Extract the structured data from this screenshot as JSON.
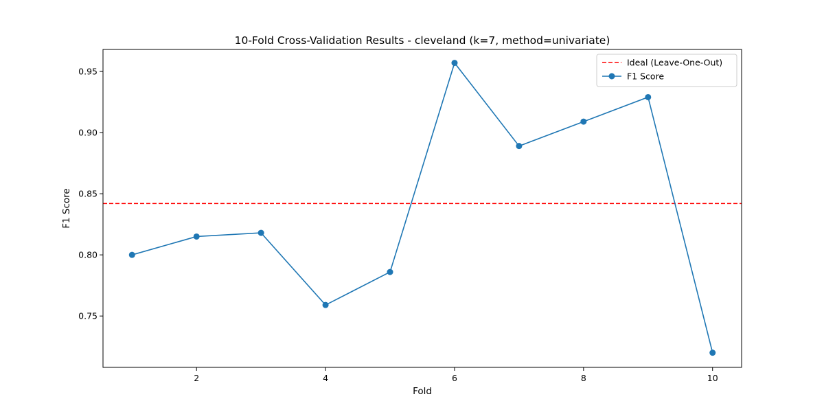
{
  "chart_data": {
    "type": "line",
    "title": "10-Fold Cross-Validation Results - cleveland (k=7, method=univariate)",
    "xlabel": "Fold",
    "ylabel": "F1 Score",
    "xlim": [
      0.55,
      10.45
    ],
    "ylim": [
      0.708,
      0.968
    ],
    "xticks": [
      2,
      4,
      6,
      8,
      10
    ],
    "yticks": [
      0.75,
      0.8,
      0.85,
      0.9,
      0.95
    ],
    "ytick_labels": [
      "0.75",
      "0.80",
      "0.85",
      "0.90",
      "0.95"
    ],
    "grid": false,
    "legend_position": "top-right",
    "series": [
      {
        "name": "F1 Score",
        "color": "#1f77b4",
        "marker": "circle",
        "x": [
          1,
          2,
          3,
          4,
          5,
          6,
          7,
          8,
          9,
          10
        ],
        "values": [
          0.8,
          0.815,
          0.818,
          0.759,
          0.786,
          0.957,
          0.889,
          0.909,
          0.929,
          0.72
        ]
      }
    ],
    "reference_lines": [
      {
        "name": "Ideal (Leave-One-Out)",
        "value": 0.842,
        "color": "#ff0000",
        "style": "dashed"
      }
    ]
  }
}
